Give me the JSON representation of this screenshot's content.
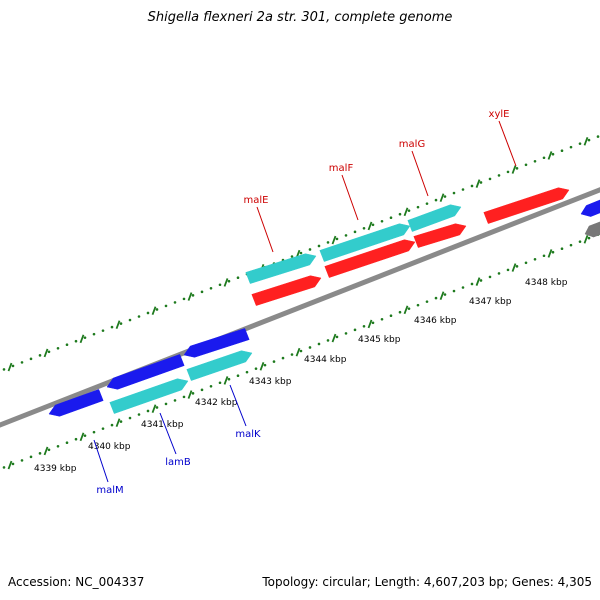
{
  "title": "Shigella flexneri 2a str. 301, complete genome",
  "footer": {
    "accession": "Accession: NC_004337",
    "summary": "Topology: circular; Length: 4,607,203 bp; Genes: 4,305"
  },
  "colors": {
    "backbone": "#8a8a8a",
    "ticks": "#1e7a1e",
    "gene_red": "#ff2020",
    "gene_cyan": "#33cccc",
    "gene_blue": "#1a1aee",
    "gene_gray": "#777777",
    "label_red": "#cc0000",
    "label_blue": "#0000cc"
  },
  "kbp_labels": [
    "4339 kbp",
    "4340 kbp",
    "4341 kbp",
    "4342 kbp",
    "4343 kbp",
    "4344 kbp",
    "4345 kbp",
    "4346 kbp",
    "4347 kbp",
    "4348 kbp"
  ],
  "genes_upper": [
    {
      "name": "malE"
    },
    {
      "name": "malF"
    },
    {
      "name": "malG"
    },
    {
      "name": "xylE"
    }
  ],
  "genes_lower": [
    {
      "name": "malM"
    },
    {
      "name": "lamB"
    },
    {
      "name": "malK"
    }
  ]
}
